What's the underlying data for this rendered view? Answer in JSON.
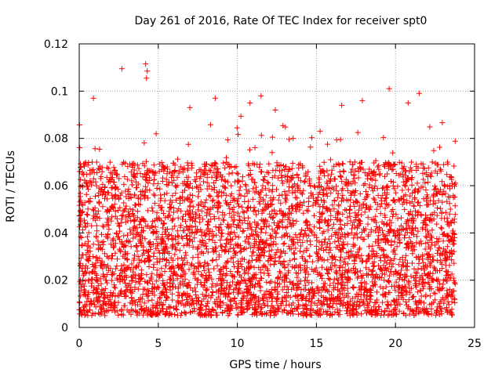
{
  "chart_data": {
    "type": "scatter",
    "title": "Day 261 of 2016, Rate Of TEC Index for receiver spt0",
    "xlabel": "GPS time / hours",
    "ylabel": "ROTI / TECUs",
    "xlim": [
      0,
      25
    ],
    "ylim": [
      0,
      0.12
    ],
    "xticks": [
      0,
      5,
      10,
      15,
      20,
      25
    ],
    "xtick_labels": [
      "0",
      "5",
      "10",
      "15",
      "20",
      "25"
    ],
    "yticks": [
      0,
      0.02,
      0.04,
      0.06,
      0.08,
      0.1,
      0.12
    ],
    "ytick_labels": [
      "0",
      "0.02",
      "0.04",
      "0.06",
      "0.08",
      "0.1",
      "0.12"
    ],
    "grid": true,
    "marker": "plus",
    "series": [
      {
        "name": "ROTI",
        "color": "#ff0000",
        "data_range_x": [
          0,
          23.8
        ],
        "typical_range_y": [
          0.005,
          0.07
        ],
        "outliers": [
          {
            "x": 2.7,
            "y": 0.1095
          },
          {
            "x": 4.2,
            "y": 0.1115
          },
          {
            "x": 4.3,
            "y": 0.1085
          },
          {
            "x": 4.25,
            "y": 0.1055
          },
          {
            "x": 0.9,
            "y": 0.097
          },
          {
            "x": 8.6,
            "y": 0.097
          },
          {
            "x": 10.8,
            "y": 0.095
          },
          {
            "x": 11.5,
            "y": 0.098
          },
          {
            "x": 17.9,
            "y": 0.096
          },
          {
            "x": 19.6,
            "y": 0.101
          },
          {
            "x": 21.5,
            "y": 0.099
          },
          {
            "x": 20.8,
            "y": 0.095
          },
          {
            "x": 16.6,
            "y": 0.094
          },
          {
            "x": 12.4,
            "y": 0.092
          },
          {
            "x": 7.0,
            "y": 0.093
          }
        ]
      }
    ]
  }
}
